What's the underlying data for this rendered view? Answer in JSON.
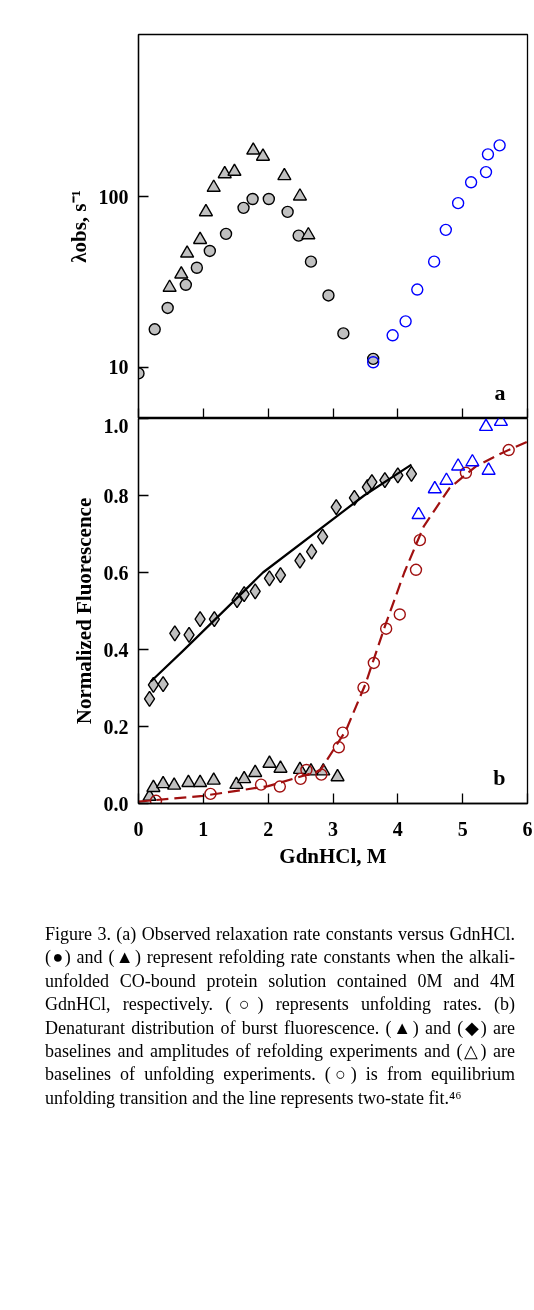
{
  "chart_data": [
    {
      "type": "scatter",
      "title": "a",
      "ylabel": "λobs, s⁻¹",
      "log": "y",
      "xlim": [
        0,
        6
      ],
      "xticks": [
        0,
        1,
        2,
        3,
        4,
        5,
        6
      ],
      "ylim": [
        5,
        900
      ],
      "yticks": [
        10,
        100
      ],
      "tick_labels": "y",
      "grid": false,
      "series": [
        {
          "color": "#c0c0c0",
          "marker": "circle",
          "x": [
            0,
            0.25,
            0.45,
            0.73,
            0.9,
            1.1,
            1.35,
            1.62,
            1.76,
            2.01,
            2.3,
            2.47,
            2.66,
            2.93,
            3.16,
            3.62
          ],
          "values": [
            9.2,
            16.7,
            22.3,
            30.5,
            38.4,
            48.2,
            60.7,
            86.3,
            97.3,
            97.3,
            81.7,
            59.3,
            41.7,
            26.4,
            15.8,
            11.2
          ]
        },
        {
          "color": "#c0c0c0",
          "marker": "triangle",
          "x": [
            0.48,
            0.66,
            0.75,
            0.95,
            1.04,
            1.16,
            1.33,
            1.48,
            1.77,
            1.92,
            2.25,
            2.49,
            2.62
          ],
          "values": [
            29.4,
            35.2,
            46.7,
            56.1,
            81.7,
            113.7,
            136.5,
            141,
            188,
            173,
            133,
            101,
            59.8
          ]
        },
        {
          "color": "#0000ff",
          "marker": "circle",
          "x": [
            3.62,
            3.92,
            4.12,
            4.3,
            4.56,
            4.74,
            4.93,
            5.13,
            5.36,
            5.39,
            5.57
          ],
          "values": [
            10.7,
            15.4,
            18.6,
            28.6,
            41.7,
            64.1,
            92.0,
            122,
            140,
            178,
            201
          ]
        }
      ]
    },
    {
      "type": "scatter",
      "title": "b",
      "xlabel": "GdnHCl, M",
      "ylabel": "Normalized Fluorescence",
      "xlim": [
        0,
        6
      ],
      "xticks": [
        0,
        1,
        2,
        3,
        4,
        5,
        6
      ],
      "ylim": [
        0,
        1
      ],
      "yticks": [
        {
          "value": 0,
          "label": "0.0"
        },
        0.2,
        0.4,
        0.6,
        0.8,
        {
          "value": 1,
          "label": "1.0"
        }
      ],
      "grid": false,
      "series": [
        {
          "color": "#c0c0c0",
          "marker": "diamond",
          "x": [
            0.17,
            0.23,
            0.38,
            0.56,
            0.78,
            0.95,
            1.17,
            1.52,
            1.63,
            1.8,
            2.02,
            2.19,
            2.49,
            2.67,
            2.84,
            3.05,
            3.33,
            3.53,
            3.6,
            3.8,
            4.0,
            4.21
          ],
          "values": [
            0.272,
            0.308,
            0.31,
            0.442,
            0.438,
            0.479,
            0.479,
            0.528,
            0.544,
            0.551,
            0.585,
            0.593,
            0.631,
            0.654,
            0.693,
            0.77,
            0.794,
            0.822,
            0.835,
            0.84,
            0.852,
            0.856
          ]
        },
        {
          "type": "line",
          "color": "#000000",
          "line_style": "solid",
          "x": [
            0.19,
            0.69,
            1.92,
            3.48,
            4.21
          ],
          "values": [
            0.317,
            0.397,
            0.6,
            0.8,
            0.88
          ]
        },
        {
          "color": "#c0c0c0",
          "marker": "triangle",
          "x": [
            0.17,
            0.23,
            0.38,
            0.55,
            0.77,
            0.95,
            1.16,
            1.51,
            1.63,
            1.8,
            2.02,
            2.19,
            2.49,
            2.66,
            2.85,
            3.07
          ],
          "values": [
            0.018,
            0.041,
            0.051,
            0.047,
            0.054,
            0.054,
            0.06,
            0.049,
            0.064,
            0.08,
            0.104,
            0.091,
            0.088,
            0.084,
            0.084,
            0.069
          ]
        },
        {
          "color": "#a01010",
          "marker": "circle",
          "x": [
            0.27,
            1.11,
            1.89,
            2.18,
            2.5,
            2.59,
            2.82,
            3.09,
            3.15,
            3.47,
            3.63,
            3.82,
            4.03,
            4.28,
            4.34,
            5.05,
            5.71
          ],
          "values": [
            0.007,
            0.025,
            0.049,
            0.044,
            0.064,
            0.087,
            0.075,
            0.146,
            0.184,
            0.301,
            0.365,
            0.454,
            0.491,
            0.607,
            0.684,
            0.859,
            0.918
          ]
        },
        {
          "type": "line",
          "color": "#a01010",
          "line_style": "dashed",
          "x": [
            0,
            1,
            2,
            2.8,
            3.2,
            3.5,
            3.8,
            4.1,
            4.4,
            4.8,
            5.2,
            5.6,
            6
          ],
          "values": [
            0.005,
            0.02,
            0.045,
            0.085,
            0.19,
            0.31,
            0.46,
            0.6,
            0.72,
            0.82,
            0.875,
            0.91,
            0.94
          ]
        },
        {
          "color": "#0000ff",
          "marker": "triangle",
          "x": [
            4.32,
            4.57,
            4.75,
            4.93,
            5.15,
            5.4,
            5.36,
            5.59
          ],
          "values": [
            0.75,
            0.817,
            0.839,
            0.876,
            0.887,
            0.865,
            0.979,
            0.992
          ]
        }
      ],
      "annotations": [
        "Figure 3. (a) Observed relaxation rate constants versus GdnHCl. (●) and (▲) represent refolding rate constants when the alkali-unfolded CO-bound protein solution contained 0M and 4M GdnHCl, respectively. (○) represents unfolding rates. (b) Denaturant distribution of burst fluorescence. (▲) and (◆) are baselines and amplitudes of refolding experiments and (△) are baselines of unfolding experiments. (○) is from equilibrium unfolding transition and the line represents two-state fit.⁴⁶"
      ]
    }
  ]
}
